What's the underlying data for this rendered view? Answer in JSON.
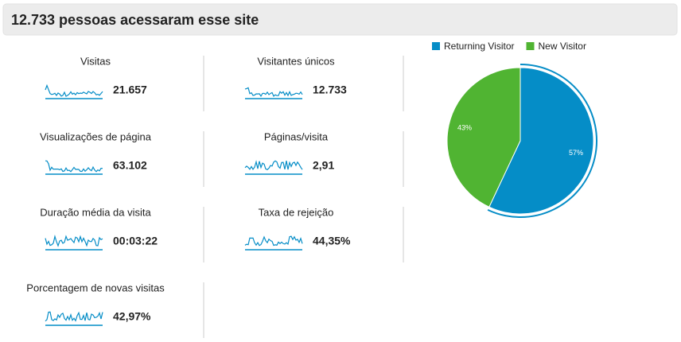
{
  "header": {
    "title": "12.733 pessoas acessaram esse site"
  },
  "metrics": [
    {
      "label": "Visitas",
      "value": "21.657"
    },
    {
      "label": "Visitantes únicos",
      "value": "12.733"
    },
    {
      "label": "Visualizações de página",
      "value": "63.102"
    },
    {
      "label": "Páginas/visita",
      "value": "2,91"
    },
    {
      "label": "Duração média da visita",
      "value": "00:03:22"
    },
    {
      "label": "Taxa de rejeição",
      "value": "44,35%"
    },
    {
      "label": "Porcentagem de novas visitas",
      "value": "42,97%"
    }
  ],
  "chart_data": {
    "type": "pie",
    "categories": [
      "Returning Visitor",
      "New Visitor"
    ],
    "values": [
      57,
      43
    ],
    "value_labels": [
      "57%",
      "43%"
    ],
    "colors": [
      "#058dc7",
      "#50b432"
    ],
    "legend": "top"
  }
}
